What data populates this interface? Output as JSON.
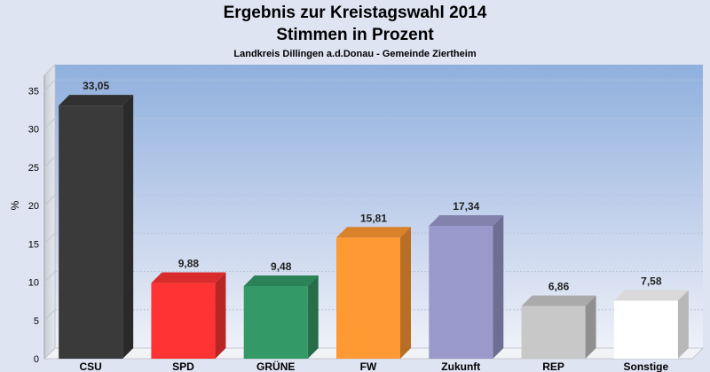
{
  "chart_data": {
    "type": "bar",
    "title": "Ergebnis zur Kreistagswahl 2014",
    "subtitle_line": "Stimmen in Prozent",
    "subtitle": "Landkreis Dillingen a.d.Donau - Gemeinde Ziertheim",
    "ylabel": "%",
    "xlabel": "",
    "ylim": [
      0,
      37
    ],
    "yticks": [
      0,
      5,
      10,
      15,
      20,
      25,
      30,
      35
    ],
    "grid": true,
    "categories": [
      "CSU",
      "SPD",
      "GRÜNE",
      "FW",
      "Zukunft",
      "REP",
      "Sonstige"
    ],
    "values": [
      33.05,
      9.88,
      9.48,
      15.81,
      17.34,
      6.86,
      7.58
    ],
    "value_labels": [
      "33,05",
      "9,88",
      "9,48",
      "15,81",
      "17,34",
      "6,86",
      "7,58"
    ],
    "colors": [
      "#3a3a3a",
      "#ff3333",
      "#339966",
      "#ff9933",
      "#9999cc",
      "#c8c8c8",
      "#ffffff"
    ]
  }
}
